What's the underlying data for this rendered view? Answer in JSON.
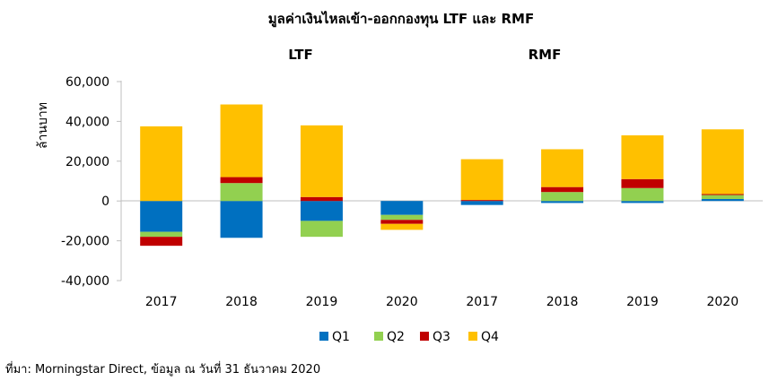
{
  "chart_data": {
    "type": "bar",
    "stacked": true,
    "title": "มูลค่าเงินไหลเข้า-ออกกองทุน  LTF และ RMF",
    "groups": [
      "LTF",
      "RMF"
    ],
    "categories": [
      "2017",
      "2018",
      "2019",
      "2020",
      "2017",
      "2018",
      "2019",
      "2020"
    ],
    "ylabel": "ล้านบาท",
    "ylim": [
      -40000,
      60000
    ],
    "yticks": [
      60000,
      40000,
      20000,
      0,
      -20000,
      -40000
    ],
    "ytick_labels": [
      "60,000",
      "40,000",
      "20,000",
      "0",
      "-20,000",
      "-40,000"
    ],
    "grid": false,
    "legend_position": "bottom",
    "series": [
      {
        "name": "Q1",
        "color": "#0070C0",
        "values": [
          -15500,
          -18500,
          -10000,
          -7000,
          -2000,
          -1000,
          -1000,
          1000
        ]
      },
      {
        "name": "Q2",
        "color": "#92D050",
        "values": [
          -2500,
          9000,
          -8000,
          -2500,
          0,
          4500,
          6500,
          2000
        ]
      },
      {
        "name": "Q3",
        "color": "#C00000",
        "values": [
          -4500,
          3000,
          2000,
          -2000,
          500,
          2500,
          4500,
          500
        ]
      },
      {
        "name": "Q4",
        "color": "#FFC000",
        "values": [
          37500,
          36500,
          36000,
          -3000,
          20500,
          19000,
          22000,
          32500
        ]
      }
    ]
  },
  "source_text": "ที่มา: Morningstar Direct, ข้อมูล ณ วันที่ 31 ธันวาคม 2020"
}
